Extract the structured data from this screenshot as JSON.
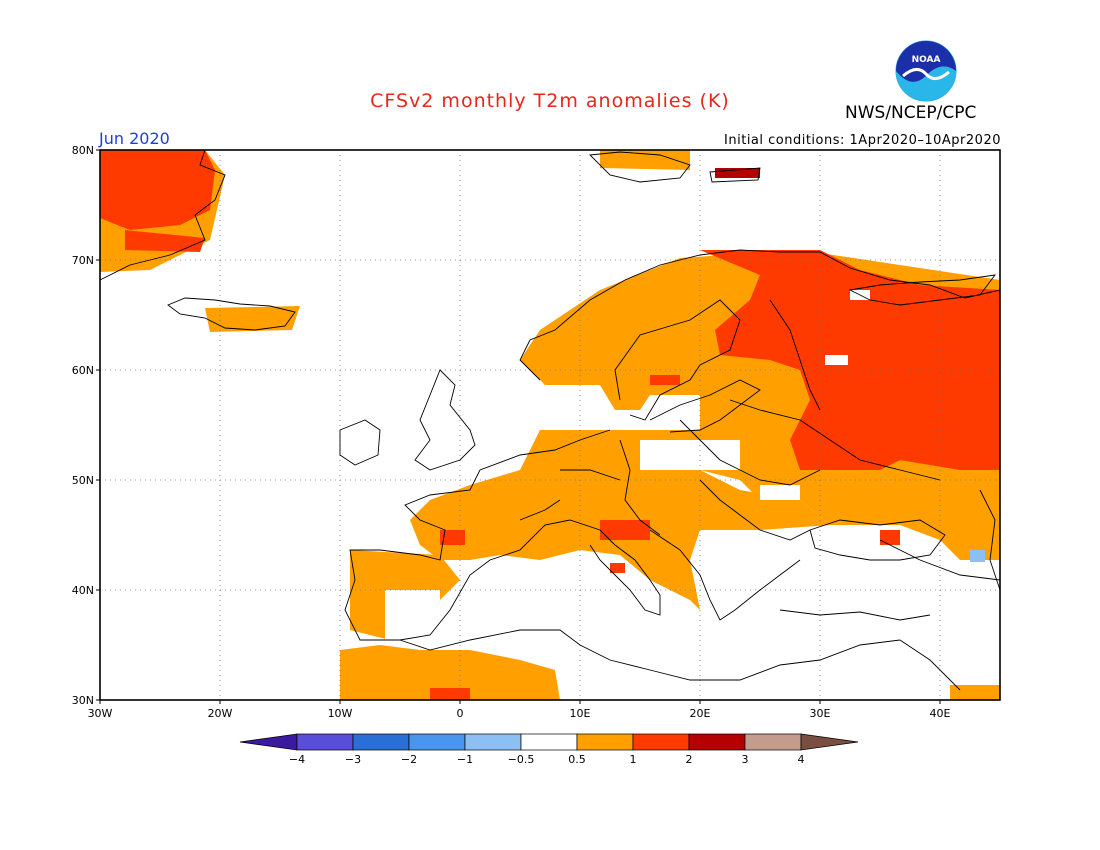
{
  "header": {
    "title": "CFSv2 monthly T2m anomalies (K)",
    "issuer": "NWS/NCEP/CPC",
    "month": "Jun 2020",
    "initial_conditions": "Initial conditions: 1Apr2020–10Apr2020",
    "logo_text": "NOAA"
  },
  "map": {
    "region": "Europe",
    "lon_labels": [
      "30W",
      "20W",
      "10W",
      "0",
      "10E",
      "20E",
      "30E",
      "40E"
    ],
    "lat_labels": [
      "80N",
      "70N",
      "60N",
      "50N",
      "40N",
      "30N"
    ],
    "lon_range": [
      -30,
      45
    ],
    "lat_range": [
      30,
      80
    ],
    "grid": "dotted"
  },
  "legend": {
    "ticks": [
      "−4",
      "−3",
      "−2",
      "−1",
      "−0.5",
      "0.5",
      "1",
      "2",
      "3",
      "4"
    ],
    "colors": [
      "#3a1a9e",
      "#5a4ed8",
      "#2a6fd6",
      "#4a96ee",
      "#8cc0f4",
      "#ffffff",
      "#ff9f00",
      "#ff3a00",
      "#b40000",
      "#c49c8c",
      "#7a4e40"
    ]
  },
  "colors": {
    "c05": "#ff9f00",
    "c1": "#ff3a00",
    "c2": "#b40000",
    "cneg": "#8cc0f4",
    "coast": "#000000"
  }
}
